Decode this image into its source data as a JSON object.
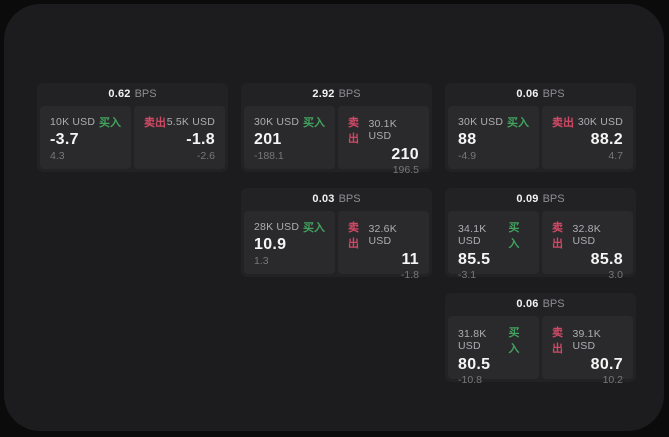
{
  "labels": {
    "buy": "买入",
    "sell": "卖出",
    "bps_unit": "BPS"
  },
  "colors": {
    "buy_green": "#41a35e",
    "sell_red": "#d04a66",
    "panel_bg": "#1c1c1e",
    "card_bg": "#222224",
    "tile_bg": "#2a2a2c"
  },
  "cards": [
    {
      "bps": "0.62",
      "grid": {
        "row": 1,
        "col": 1
      },
      "buy": {
        "amount": "10K USD",
        "price": "-3.7",
        "change": "4.3"
      },
      "sell": {
        "amount": "5.5K USD",
        "price": "-1.8",
        "change": "-2.6"
      }
    },
    {
      "bps": "2.92",
      "grid": {
        "row": 1,
        "col": 2
      },
      "buy": {
        "amount": "30K USD",
        "price": "201",
        "change": "-188.1"
      },
      "sell": {
        "amount": "30.1K USD",
        "price": "210",
        "change": "196.5"
      }
    },
    {
      "bps": "0.06",
      "grid": {
        "row": 1,
        "col": 3
      },
      "buy": {
        "amount": "30K USD",
        "price": "88",
        "change": "-4.9"
      },
      "sell": {
        "amount": "30K USD",
        "price": "88.2",
        "change": "4.7"
      }
    },
    {
      "bps": "0.03",
      "grid": {
        "row": 2,
        "col": 2
      },
      "buy": {
        "amount": "28K USD",
        "price": "10.9",
        "change": "1.3"
      },
      "sell": {
        "amount": "32.6K USD",
        "price": "11",
        "change": "-1.8"
      }
    },
    {
      "bps": "0.09",
      "grid": {
        "row": 2,
        "col": 3
      },
      "buy": {
        "amount": "34.1K USD",
        "price": "85.5",
        "change": "-3.1"
      },
      "sell": {
        "amount": "32.8K USD",
        "price": "85.8",
        "change": "3.0"
      }
    },
    {
      "bps": "0.06",
      "grid": {
        "row": 3,
        "col": 3
      },
      "buy": {
        "amount": "31.8K USD",
        "price": "80.5",
        "change": "-10.8"
      },
      "sell": {
        "amount": "39.1K USD",
        "price": "80.7",
        "change": "10.2"
      }
    }
  ]
}
